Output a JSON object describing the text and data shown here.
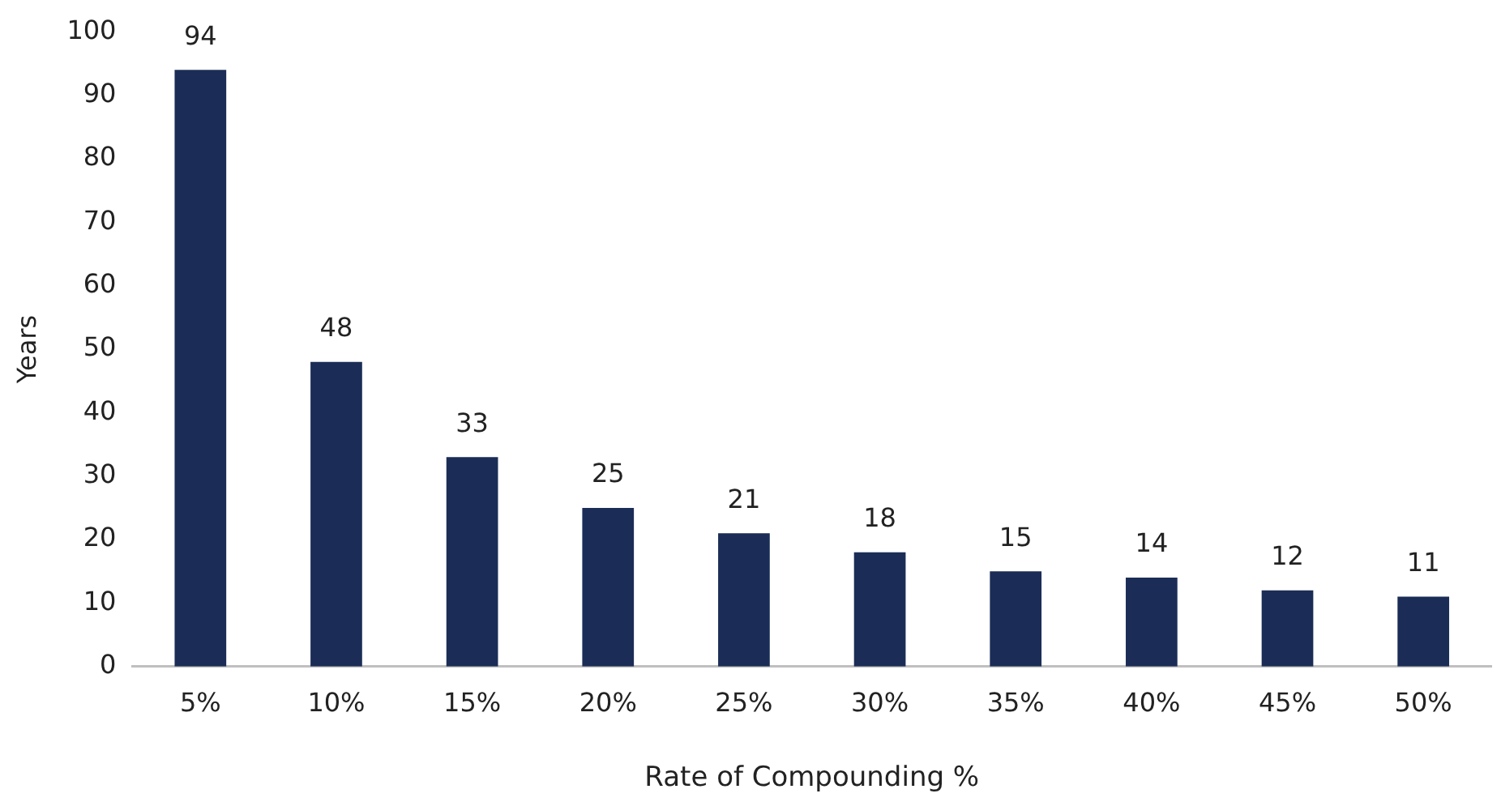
{
  "chart_data": {
    "type": "bar",
    "xlabel": "Rate of Compounding %",
    "ylabel": "Years",
    "categories": [
      "5%",
      "10%",
      "15%",
      "20%",
      "25%",
      "30%",
      "35%",
      "40%",
      "45%",
      "50%"
    ],
    "values": [
      94,
      48,
      33,
      25,
      21,
      18,
      15,
      14,
      12,
      11
    ],
    "color": "#1b2d56",
    "ylim": [
      0,
      100
    ],
    "yticks": [
      0,
      10,
      20,
      30,
      40,
      50,
      60,
      70,
      80,
      90,
      100
    ],
    "grid": false,
    "legend": false,
    "data_labels": true
  }
}
